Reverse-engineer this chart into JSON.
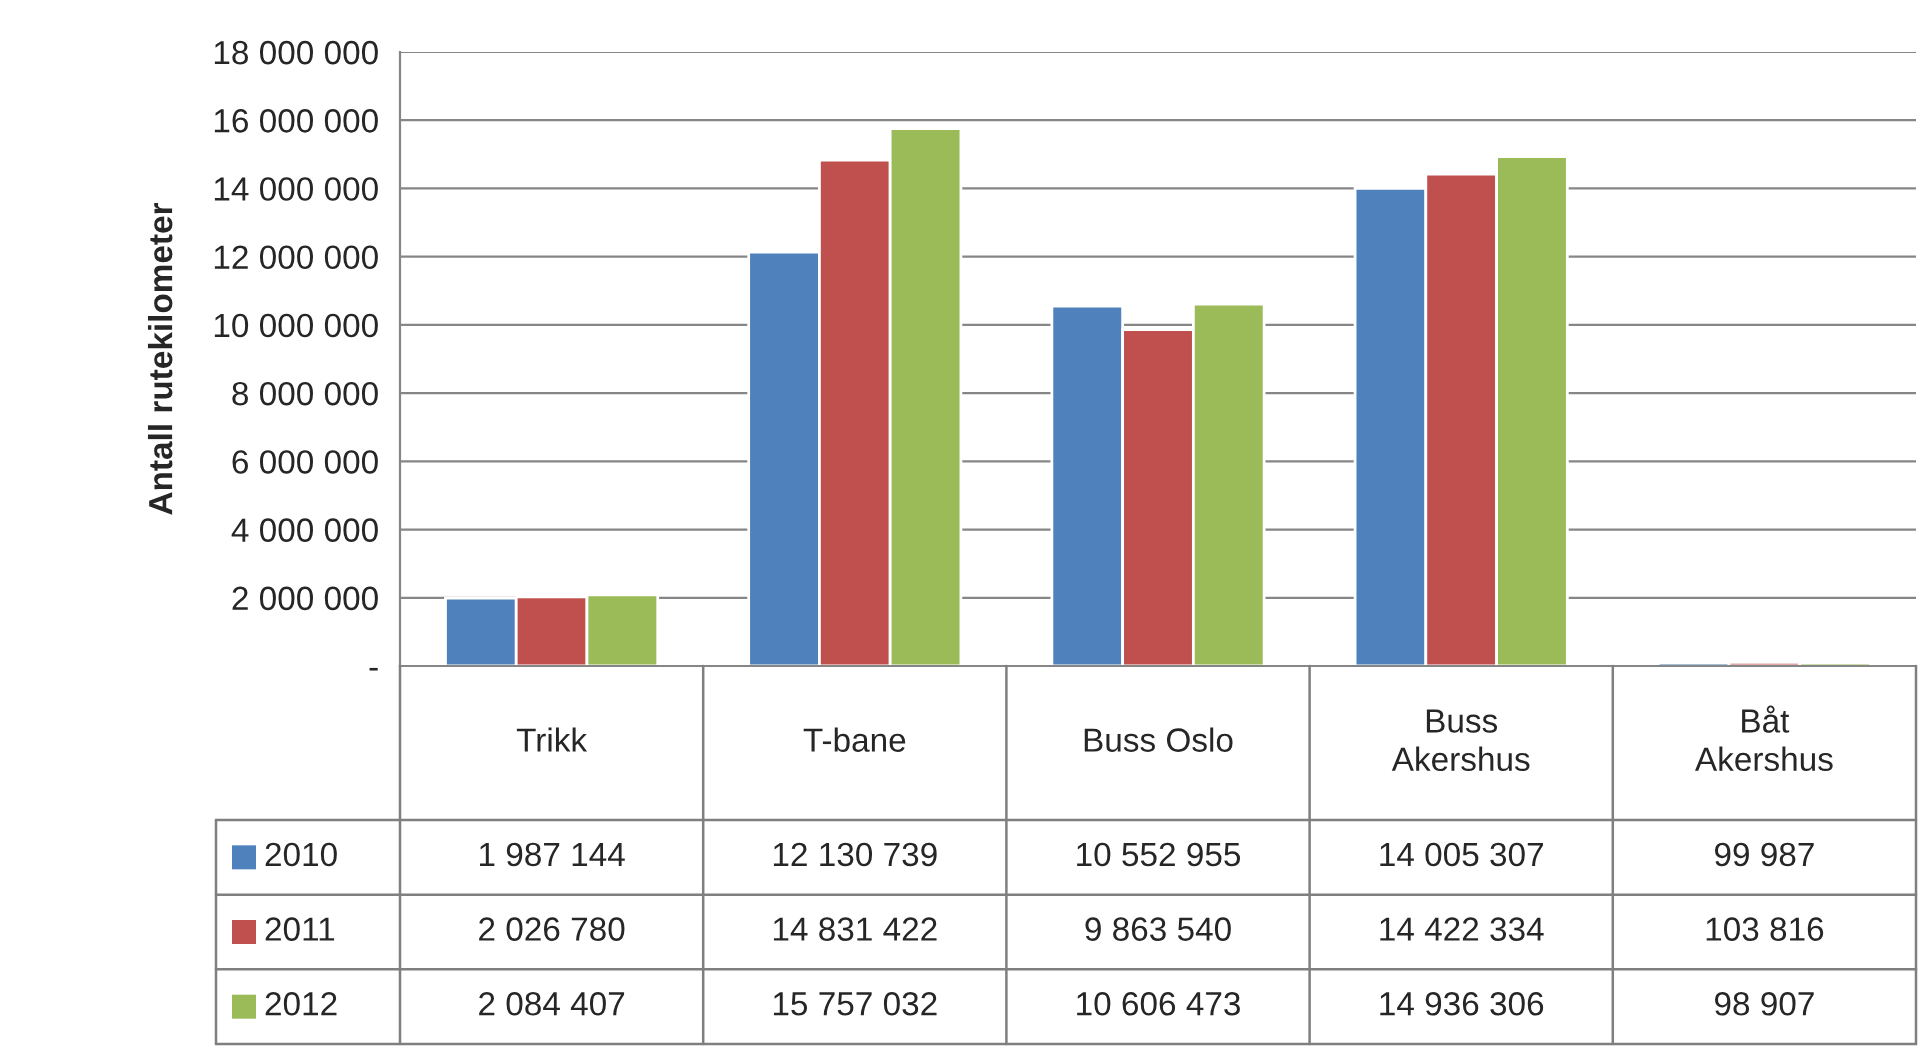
{
  "chart_data": {
    "type": "bar",
    "ylabel": "Antall rutekilometer",
    "categories": [
      "Trikk",
      "T-bane",
      "Buss Oslo",
      "Buss\nAkershus",
      "Båt\nAkershus"
    ],
    "series": [
      {
        "name": "2010",
        "color": "#4f81bd",
        "values": [
          1987144,
          12130739,
          10552955,
          14005307,
          99987
        ],
        "value_labels": [
          "1 987 144",
          "12 130 739",
          "10 552 955",
          "14 005 307",
          "99 987"
        ]
      },
      {
        "name": "2011",
        "color": "#c0504d",
        "values": [
          2026780,
          14831422,
          9863540,
          14422334,
          103816
        ],
        "value_labels": [
          "2 026 780",
          "14 831 422",
          "9 863 540",
          "14 422 334",
          "103 816"
        ]
      },
      {
        "name": "2012",
        "color": "#9bbb59",
        "values": [
          2084407,
          15757032,
          10606473,
          14936306,
          98907
        ],
        "value_labels": [
          "2 084 407",
          "15 757 032",
          "10 606 473",
          "14 936 306",
          "98 907"
        ]
      }
    ],
    "ylim": [
      0,
      18000000
    ],
    "yticks": [
      {
        "value": 0,
        "label": "-"
      },
      {
        "value": 2000000,
        "label": "2 000 000"
      },
      {
        "value": 4000000,
        "label": "4 000 000"
      },
      {
        "value": 6000000,
        "label": "6 000 000"
      },
      {
        "value": 8000000,
        "label": "8 000 000"
      },
      {
        "value": 10000000,
        "label": "10 000 000"
      },
      {
        "value": 12000000,
        "label": "12 000 000"
      },
      {
        "value": 14000000,
        "label": "14 000 000"
      },
      {
        "value": 16000000,
        "label": "16 000 000"
      },
      {
        "value": 18000000,
        "label": "18 000 000"
      }
    ],
    "grid": "y",
    "legend": "bottom"
  }
}
